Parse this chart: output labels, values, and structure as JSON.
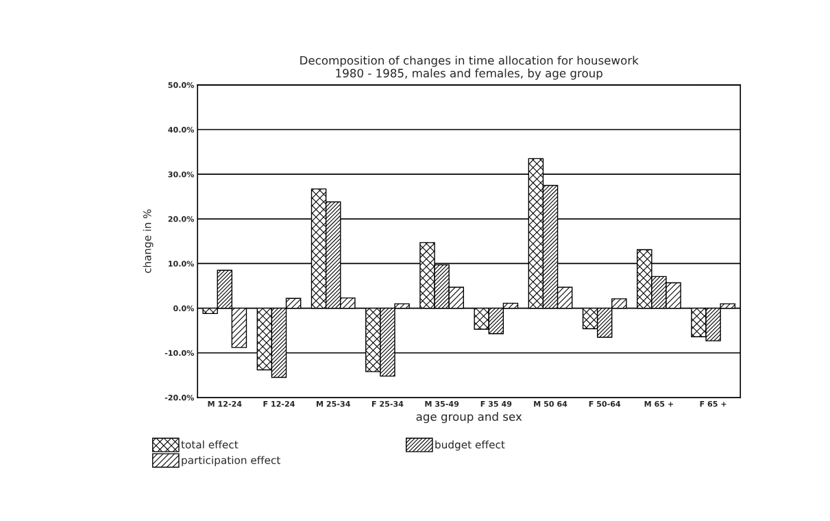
{
  "chart_data": {
    "type": "bar",
    "title": "Decomposition of changes in time allocation for housework\n1980 - 1985, males and females, by age group",
    "xlabel": "age group and sex",
    "ylabel": "change in %",
    "categories": [
      "M 12-24",
      "F 12-24",
      "M 25-34",
      "F 25-34",
      "M 35-49",
      "F 35 49",
      "M 50 64",
      "F 50-64",
      "M 65 +",
      "F 65 +"
    ],
    "series": [
      {
        "name": "total effect",
        "color": "#000000",
        "values": [
          -1.2,
          -13.8,
          26.7,
          -14.2,
          14.7,
          -4.7,
          33.5,
          -4.6,
          13.1,
          -6.4
        ]
      },
      {
        "name": "budget effect",
        "color": "#000000",
        "values": [
          8.5,
          -15.5,
          23.8,
          -15.2,
          9.7,
          -5.7,
          27.5,
          -6.5,
          7.1,
          -7.3
        ]
      },
      {
        "name": "participation effect",
        "color": "#000000",
        "values": [
          -8.8,
          2.2,
          2.3,
          1.0,
          4.7,
          1.1,
          4.7,
          2.1,
          5.7,
          1.0
        ]
      }
    ],
    "ylim": [
      -20,
      50
    ],
    "yticks": [
      {
        "value": -20,
        "label": "-20.0%"
      },
      {
        "value": -10,
        "label": "-10.0%"
      },
      {
        "value": 0,
        "label": "0.0%"
      },
      {
        "value": 10,
        "label": "10.0%"
      },
      {
        "value": 20,
        "label": "20.0%"
      },
      {
        "value": 30,
        "label": "30.0%"
      },
      {
        "value": 40,
        "label": "40.0%"
      },
      {
        "value": 50,
        "label": "50.0%"
      }
    ],
    "grid": "y",
    "legend": "bottom"
  }
}
